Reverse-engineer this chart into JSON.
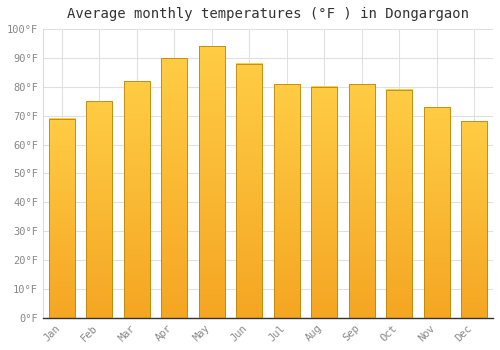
{
  "title": "Average monthly temperatures (°F ) in Dongargaon",
  "months": [
    "Jan",
    "Feb",
    "Mar",
    "Apr",
    "May",
    "Jun",
    "Jul",
    "Aug",
    "Sep",
    "Oct",
    "Nov",
    "Dec"
  ],
  "values": [
    69,
    75,
    82,
    90,
    94,
    88,
    81,
    80,
    81,
    79,
    73,
    68
  ],
  "bar_color_bottom": "#F5A623",
  "bar_color_top": "#FFCC44",
  "bar_edge_color": "#B8860B",
  "ylim": [
    0,
    100
  ],
  "yticks": [
    0,
    10,
    20,
    30,
    40,
    50,
    60,
    70,
    80,
    90,
    100
  ],
  "ytick_labels": [
    "0°F",
    "10°F",
    "20°F",
    "30°F",
    "40°F",
    "50°F",
    "60°F",
    "70°F",
    "80°F",
    "90°F",
    "100°F"
  ],
  "background_color": "#ffffff",
  "grid_color": "#e0e0e0",
  "title_fontsize": 10,
  "tick_fontsize": 7.5,
  "font_family": "monospace",
  "tick_color": "#888888",
  "bar_width": 0.7
}
